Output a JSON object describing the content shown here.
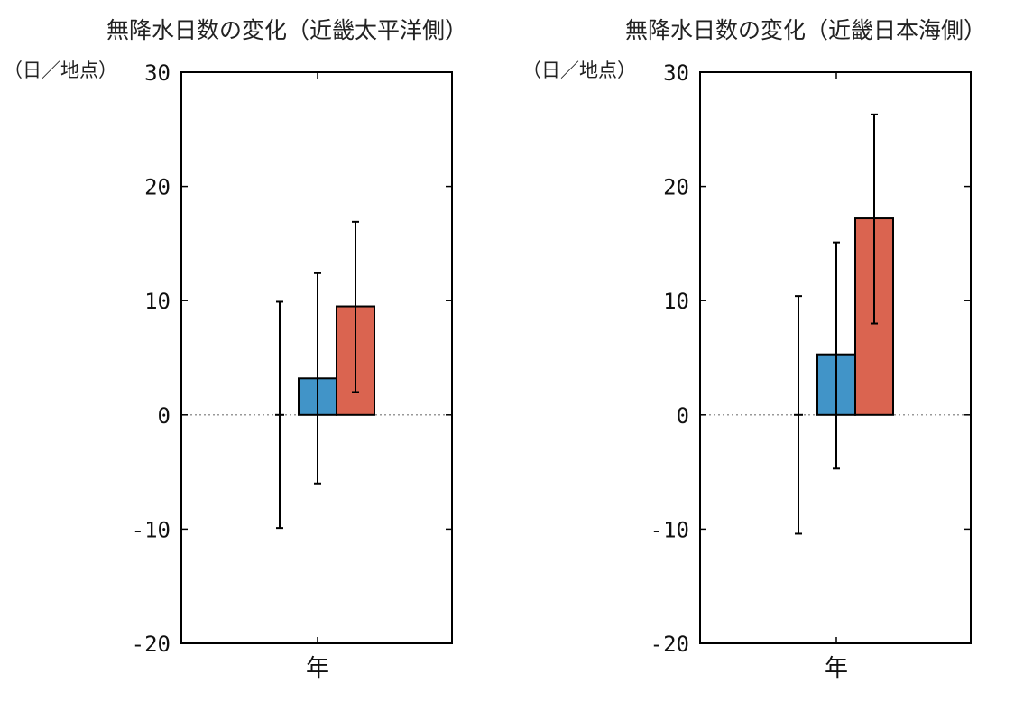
{
  "chart_data": [
    {
      "type": "bar",
      "title": "無降水日数の変化（近畿太平洋側）",
      "ylabel": "（日／地点）",
      "xlabel": "",
      "categories": [
        "年"
      ],
      "ylim": [
        -20,
        30
      ],
      "yticks": [
        -20,
        -10,
        0,
        10,
        20,
        30
      ],
      "grid": false,
      "zero_line": true,
      "series": [
        {
          "values": [
            0.0
          ],
          "error_low": [
            -9.9
          ],
          "error_high": [
            9.9
          ],
          "color": "#000000",
          "bar": false
        },
        {
          "values": [
            3.2
          ],
          "error_low": [
            -6.0
          ],
          "error_high": [
            12.4
          ],
          "color": "#4194c8",
          "bar": true
        },
        {
          "values": [
            9.5
          ],
          "error_low": [
            2.0
          ],
          "error_high": [
            16.9
          ],
          "color": "#da6450",
          "bar": true
        }
      ]
    },
    {
      "type": "bar",
      "title": "無降水日数の変化（近畿日本海側）",
      "ylabel": "（日／地点）",
      "xlabel": "",
      "categories": [
        "年"
      ],
      "ylim": [
        -20,
        30
      ],
      "yticks": [
        -20,
        -10,
        0,
        10,
        20,
        30
      ],
      "grid": false,
      "zero_line": true,
      "series": [
        {
          "values": [
            0.0
          ],
          "error_low": [
            -10.4
          ],
          "error_high": [
            10.4
          ],
          "color": "#000000",
          "bar": false
        },
        {
          "values": [
            5.3
          ],
          "error_low": [
            -4.7
          ],
          "error_high": [
            15.1
          ],
          "color": "#4194c8",
          "bar": true
        },
        {
          "values": [
            17.2
          ],
          "error_low": [
            8.0
          ],
          "error_high": [
            26.3
          ],
          "color": "#da6450",
          "bar": true
        }
      ]
    }
  ]
}
